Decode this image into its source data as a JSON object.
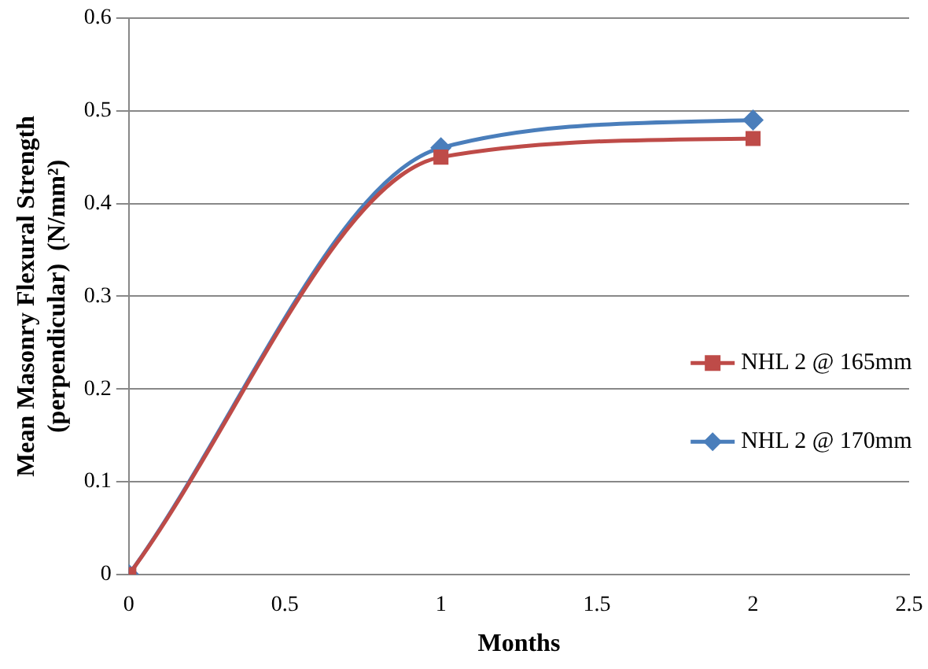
{
  "chart_data": {
    "type": "line",
    "xlabel": "Months",
    "ylabel": "Mean Masonry Flexural Strength (perpendicular)  (N/mm²)",
    "x": [
      0,
      1,
      2
    ],
    "series": [
      {
        "name": "NHL 2 @ 165mm",
        "color": "#be4b48",
        "marker": "square",
        "values": [
          0,
          0.45,
          0.47
        ]
      },
      {
        "name": "NHL 2 @ 170mm",
        "color": "#4a7ebb",
        "marker": "diamond",
        "values": [
          0,
          0.46,
          0.49
        ]
      }
    ],
    "xlim": [
      0,
      2.5
    ],
    "xticks": [
      0,
      0.5,
      1,
      1.5,
      2,
      2.5
    ],
    "ylim": [
      0,
      0.6
    ],
    "yticks": [
      0,
      0.1,
      0.2,
      0.3,
      0.4,
      0.5,
      0.6
    ],
    "grid": "y",
    "legend": "right",
    "line_style": "solid"
  }
}
